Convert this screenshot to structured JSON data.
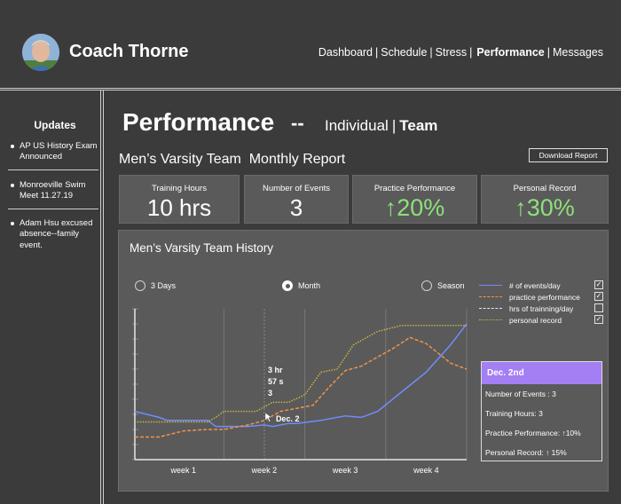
{
  "header": {
    "coach_name": "Coach Thorne",
    "nav": [
      "Dashboard",
      "Schedule",
      "Stress",
      "Performance",
      "Messages"
    ],
    "active_nav": "Performance"
  },
  "sidebar": {
    "title": "Updates",
    "items": [
      "AP US History Exam Announced",
      "Monroeville Swim Meet 11.27.19",
      "Adam Hsu excused absence--family event."
    ]
  },
  "page": {
    "title": "Performance",
    "dash": "--",
    "tab_individual": "Individual",
    "tab_sep": "|",
    "tab_team": "Team",
    "report_title": "Men’s Varsity Team  Monthly Report",
    "download_label": "Download Report"
  },
  "stats": [
    {
      "label": "Training Hours",
      "value": "10 hrs"
    },
    {
      "label": "Number of Events",
      "value": "3"
    },
    {
      "label": "Practice Performance",
      "value": "↑20%"
    },
    {
      "label": "Personal Record",
      "value": "↑30%"
    }
  ],
  "history": {
    "title": "Men’s Varsity Team History",
    "ranges": [
      "3 Days",
      "Month",
      "Season"
    ],
    "selected_range": "Month",
    "legend": [
      {
        "name": "# of events/day",
        "color": "#6f8cff",
        "style": "solid",
        "checked": true
      },
      {
        "name": "practice performance",
        "color": "#f0934b",
        "style": "dashed",
        "checked": true
      },
      {
        "name": "hrs of trainning/day",
        "color": "#e8e8e8",
        "style": "dashed",
        "checked": false
      },
      {
        "name": "personal record",
        "color": "#c8b540",
        "style": "dotted",
        "checked": true
      }
    ],
    "check_mark": "✓",
    "annotations": {
      "hr": "3 hr",
      "sec": "57 s",
      "events": "3",
      "date": "Dec. 2"
    },
    "tooltip": {
      "title": "Dec. 2nd",
      "events": "Number of Events : 3",
      "hours": "Training Hours: 3",
      "practice": "Practice Performance:  ↑10%",
      "record": "Personal Record:  ↑ 15%"
    }
  },
  "chart_data": {
    "type": "line",
    "x_tick_labels": [
      "week 1",
      "week 2",
      "week 3",
      "week 4"
    ],
    "x_ticks": [
      1,
      2,
      3,
      4
    ],
    "xlim": [
      0.4,
      4.5
    ],
    "ylim": [
      0,
      10
    ],
    "grid": true,
    "legend_position": "right",
    "series": [
      {
        "name": "# of events/day",
        "color": "#6f8cff",
        "x": [
          0.4,
          0.7,
          0.8,
          1.0,
          1.3,
          1.4,
          1.5,
          1.8,
          2.0,
          2.1,
          2.3,
          2.4,
          2.7,
          3.0,
          3.2,
          3.4,
          3.7,
          4.0,
          4.3,
          4.5
        ],
        "y": [
          3.2,
          2.8,
          2.6,
          2.6,
          2.6,
          2.2,
          2.2,
          2.2,
          2.3,
          2.2,
          2.4,
          2.4,
          2.6,
          2.9,
          2.8,
          3.2,
          4.5,
          5.8,
          7.6,
          9.0
        ]
      },
      {
        "name": "practice performance",
        "color": "#f0934b",
        "x": [
          0.4,
          0.7,
          1.0,
          1.3,
          1.5,
          1.8,
          2.0,
          2.2,
          2.6,
          2.8,
          3.0,
          3.2,
          3.6,
          3.8,
          4.0,
          4.3,
          4.5
        ],
        "y": [
          1.5,
          1.5,
          1.9,
          2.0,
          2.0,
          2.3,
          2.6,
          3.2,
          3.6,
          4.8,
          5.9,
          6.2,
          7.4,
          8.1,
          7.7,
          6.4,
          6.0
        ]
      },
      {
        "name": "personal record",
        "color": "#c8b540",
        "x": [
          0.4,
          0.7,
          1.0,
          1.3,
          1.4,
          1.5,
          1.7,
          1.9,
          2.1,
          2.3,
          2.5,
          2.7,
          2.9,
          3.1,
          3.4,
          3.7,
          4.0,
          4.3,
          4.5
        ],
        "y": [
          2.5,
          2.5,
          2.5,
          2.5,
          2.8,
          3.2,
          3.2,
          3.2,
          3.8,
          3.8,
          4.3,
          5.8,
          6.0,
          7.6,
          8.5,
          8.9,
          8.9,
          8.9,
          8.9
        ]
      }
    ],
    "marker_x": 2.0
  }
}
